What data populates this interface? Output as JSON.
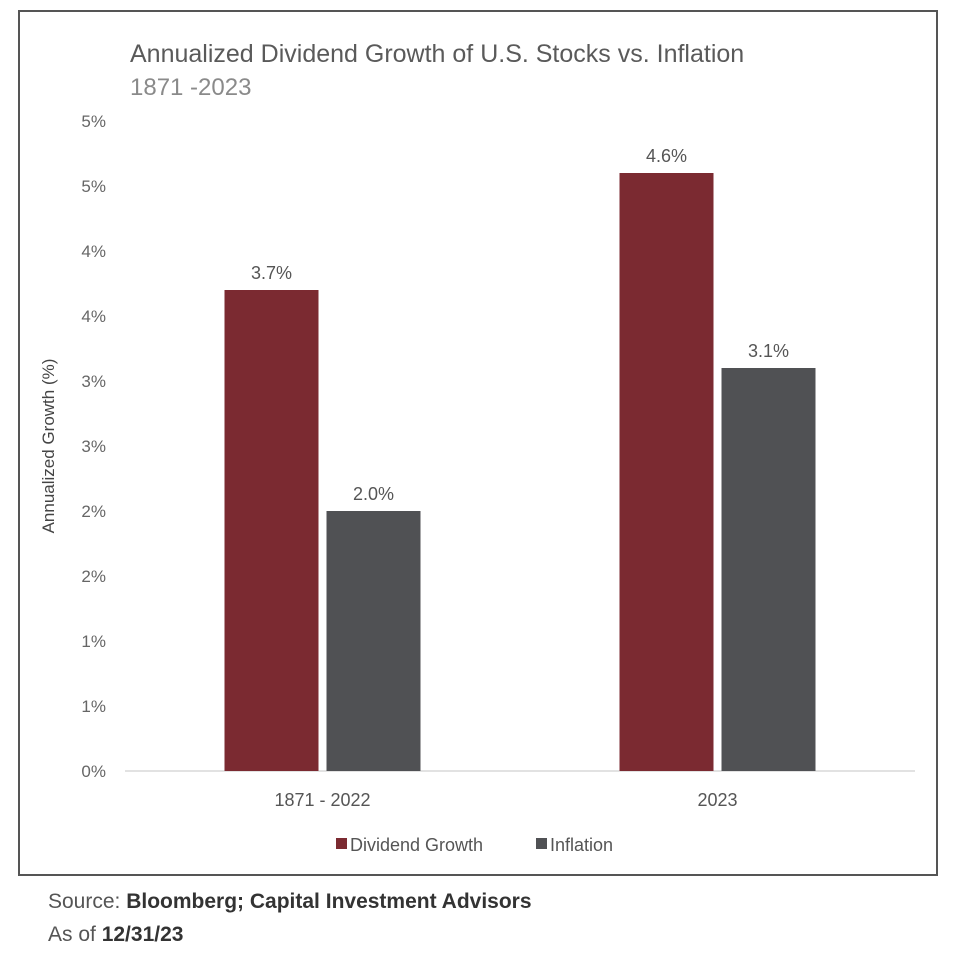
{
  "chart_data": {
    "type": "bar",
    "title": "Annualized Dividend Growth of U.S. Stocks vs. Inflation",
    "subtitle": "1871 -2023",
    "ylabel": "Annualized Growth (%)",
    "xlabel": "",
    "categories": [
      "1871 - 2022",
      "2023"
    ],
    "ylim": [
      0,
      5
    ],
    "y_tick_labels": [
      "0%",
      "1%",
      "1%",
      "2%",
      "2%",
      "3%",
      "3%",
      "4%",
      "4%",
      "5%",
      "5%"
    ],
    "series": [
      {
        "name": "Dividend Growth",
        "values": [
          3.7,
          4.6
        ],
        "labels": [
          "3.7%",
          "4.6%"
        ],
        "color": "#7b2a31"
      },
      {
        "name": "Inflation",
        "values": [
          2.0,
          3.1
        ],
        "labels": [
          "2.0%",
          "3.1%"
        ],
        "color": "#505154"
      }
    ],
    "grid": false,
    "legend_position": "bottom"
  },
  "footer": {
    "source_label": "Source: ",
    "source_value": "Bloomberg; Capital Investment Advisors",
    "asof_label": "As of ",
    "asof_value": "12/31/23"
  }
}
